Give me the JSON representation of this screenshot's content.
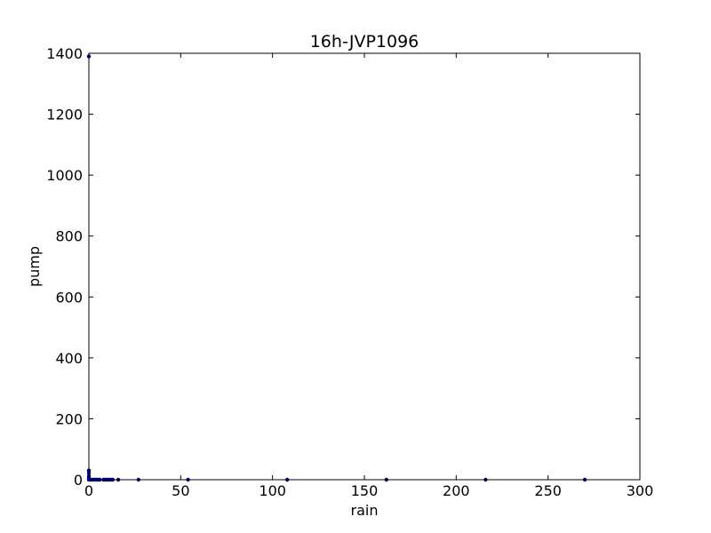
{
  "chart_data": {
    "type": "scatter",
    "title": "16h-JVP1096",
    "xlabel": "rain",
    "ylabel": "pump",
    "xlim": [
      0,
      300
    ],
    "ylim": [
      0,
      1400
    ],
    "xticks": [
      0,
      50,
      100,
      150,
      200,
      250,
      300
    ],
    "yticks": [
      0,
      200,
      400,
      600,
      800,
      1000,
      1200,
      1400
    ],
    "grid": false,
    "point_color": "#00008b",
    "points": [
      {
        "x": 0,
        "y": 1390
      },
      {
        "x": 0,
        "y": 30
      },
      {
        "x": 0,
        "y": 22
      },
      {
        "x": 0,
        "y": 12
      },
      {
        "x": 0,
        "y": 5
      },
      {
        "x": 0,
        "y": 0
      },
      {
        "x": 1,
        "y": 0
      },
      {
        "x": 2,
        "y": 0
      },
      {
        "x": 3,
        "y": 0
      },
      {
        "x": 4,
        "y": 0
      },
      {
        "x": 5,
        "y": 0
      },
      {
        "x": 6,
        "y": 0
      },
      {
        "x": 8,
        "y": 0
      },
      {
        "x": 9,
        "y": 0
      },
      {
        "x": 10,
        "y": 0
      },
      {
        "x": 11,
        "y": 0
      },
      {
        "x": 12,
        "y": 0
      },
      {
        "x": 13,
        "y": 0
      },
      {
        "x": 16,
        "y": 0
      },
      {
        "x": 27,
        "y": 0
      },
      {
        "x": 54,
        "y": 0
      },
      {
        "x": 108,
        "y": 0
      },
      {
        "x": 162,
        "y": 0
      },
      {
        "x": 216,
        "y": 0
      },
      {
        "x": 270,
        "y": 0
      }
    ]
  }
}
